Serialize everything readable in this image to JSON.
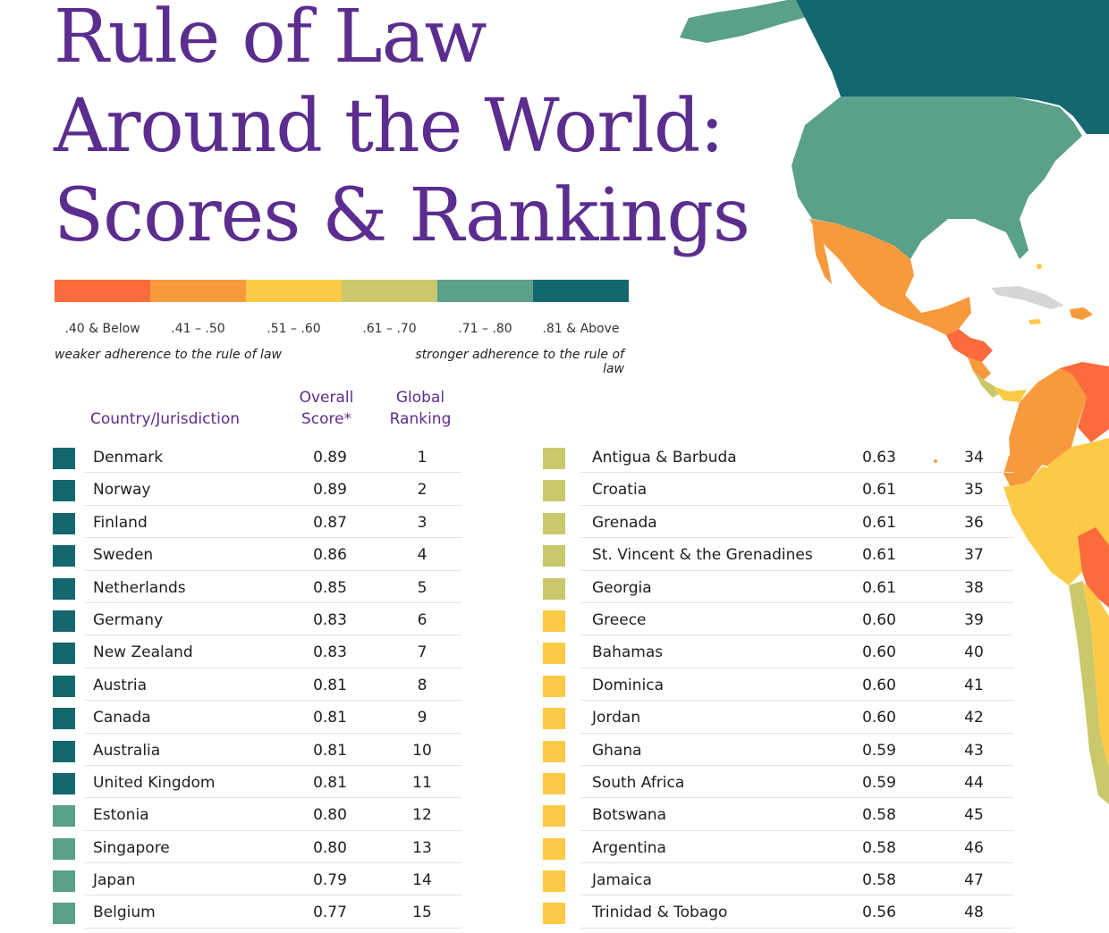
{
  "title": {
    "line1": "Rule of Law",
    "line2": "Around the World:",
    "line3": "Scores & Rankings"
  },
  "legend": {
    "colors": [
      "#fb6b3c",
      "#f79a3e",
      "#fdca46",
      "#c9c96b",
      "#5aa08a",
      "#15676f"
    ],
    "ranges": [
      ".40 & Below",
      ".41 – .50",
      ".51 – .60",
      ".61 – .70",
      ".71 – .80",
      ".81 & Above"
    ],
    "weaker_label": "weaker adherence to the rule of law",
    "stronger_label": "stronger adherence to the rule of law"
  },
  "headers": {
    "country": "Country/Jurisdiction",
    "score_line1": "Overall",
    "score_line2": "Score*",
    "rank_line1": "Global",
    "rank_line2": "Ranking"
  },
  "table_left": [
    {
      "country": "Denmark",
      "score": "0.89",
      "rank": "1",
      "color": "#15676f"
    },
    {
      "country": "Norway",
      "score": "0.89",
      "rank": "2",
      "color": "#15676f"
    },
    {
      "country": "Finland",
      "score": "0.87",
      "rank": "3",
      "color": "#15676f"
    },
    {
      "country": "Sweden",
      "score": "0.86",
      "rank": "4",
      "color": "#15676f"
    },
    {
      "country": "Netherlands",
      "score": "0.85",
      "rank": "5",
      "color": "#15676f"
    },
    {
      "country": "Germany",
      "score": "0.83",
      "rank": "6",
      "color": "#15676f"
    },
    {
      "country": "New Zealand",
      "score": "0.83",
      "rank": "7",
      "color": "#15676f"
    },
    {
      "country": "Austria",
      "score": "0.81",
      "rank": "8",
      "color": "#15676f"
    },
    {
      "country": "Canada",
      "score": "0.81",
      "rank": "9",
      "color": "#15676f"
    },
    {
      "country": "Australia",
      "score": "0.81",
      "rank": "10",
      "color": "#15676f"
    },
    {
      "country": "United Kingdom",
      "score": "0.81",
      "rank": "11",
      "color": "#15676f"
    },
    {
      "country": "Estonia",
      "score": "0.80",
      "rank": "12",
      "color": "#5aa08a"
    },
    {
      "country": "Singapore",
      "score": "0.80",
      "rank": "13",
      "color": "#5aa08a"
    },
    {
      "country": "Japan",
      "score": "0.79",
      "rank": "14",
      "color": "#5aa08a"
    },
    {
      "country": "Belgium",
      "score": "0.77",
      "rank": "15",
      "color": "#5aa08a"
    }
  ],
  "table_right": [
    {
      "country": "Antigua & Barbuda",
      "score": "0.63",
      "rank": "34",
      "color": "#c9c96b"
    },
    {
      "country": "Croatia",
      "score": "0.61",
      "rank": "35",
      "color": "#c9c96b"
    },
    {
      "country": "Grenada",
      "score": "0.61",
      "rank": "36",
      "color": "#c9c96b"
    },
    {
      "country": "St. Vincent & the Grenadines",
      "score": "0.61",
      "rank": "37",
      "color": "#c9c96b"
    },
    {
      "country": "Georgia",
      "score": "0.61",
      "rank": "38",
      "color": "#c9c96b"
    },
    {
      "country": "Greece",
      "score": "0.60",
      "rank": "39",
      "color": "#fdca46"
    },
    {
      "country": "Bahamas",
      "score": "0.60",
      "rank": "40",
      "color": "#fdca46"
    },
    {
      "country": "Dominica",
      "score": "0.60",
      "rank": "41",
      "color": "#fdca46"
    },
    {
      "country": "Jordan",
      "score": "0.60",
      "rank": "42",
      "color": "#fdca46"
    },
    {
      "country": "Ghana",
      "score": "0.59",
      "rank": "43",
      "color": "#fdca46"
    },
    {
      "country": "South Africa",
      "score": "0.59",
      "rank": "44",
      "color": "#fdca46"
    },
    {
      "country": "Botswana",
      "score": "0.58",
      "rank": "45",
      "color": "#fdca46"
    },
    {
      "country": "Argentina",
      "score": "0.58",
      "rank": "46",
      "color": "#fdca46"
    },
    {
      "country": "Jamaica",
      "score": "0.58",
      "rank": "47",
      "color": "#fdca46"
    },
    {
      "country": "Trinidad & Tobago",
      "score": "0.56",
      "rank": "48",
      "color": "#fdca46"
    }
  ]
}
